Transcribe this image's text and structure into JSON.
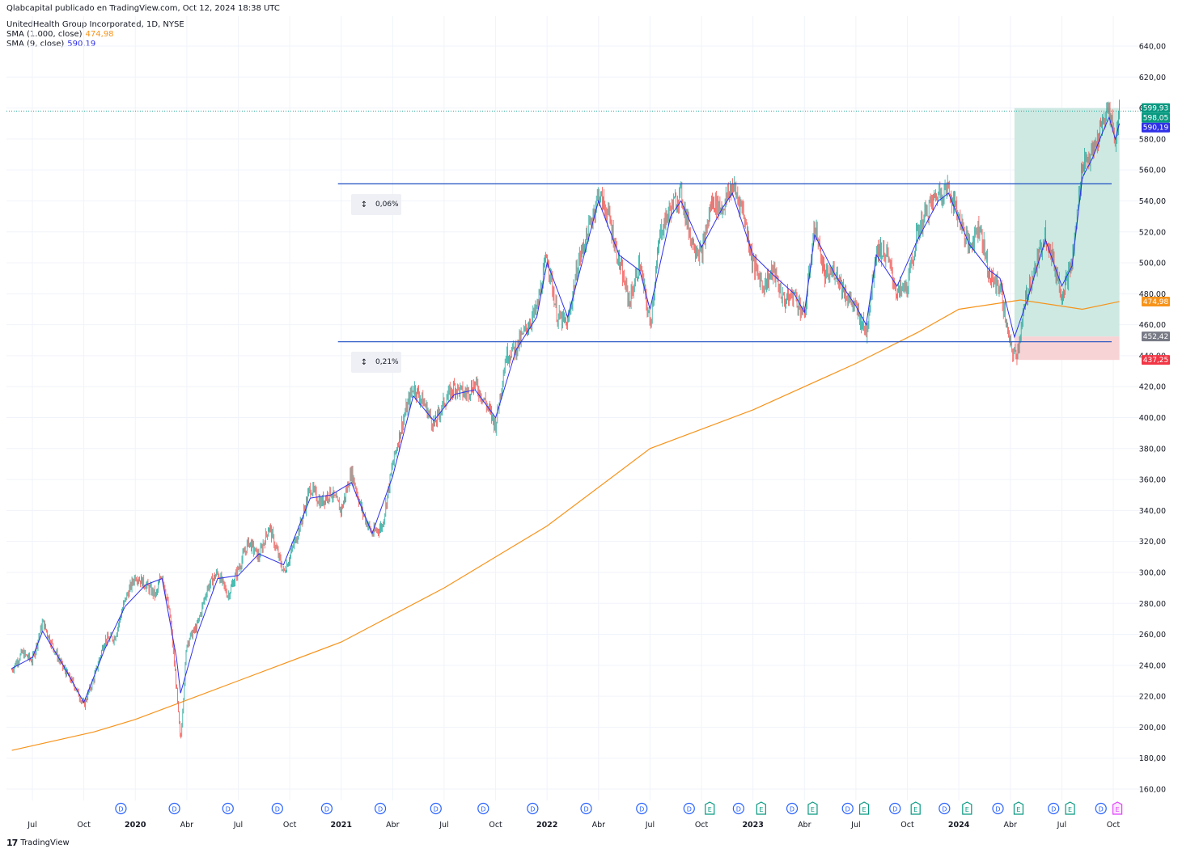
{
  "header": {
    "published": "Qlabcapital publicado en TradingView.com, Oct 12, 2024 18:38 UTC",
    "symbol": "UnitedHealth Group Incorporated, 1D, NYSE",
    "sma_long_label": "SMA (1.000, close)",
    "sma_long_value": "474,98",
    "sma_short_label": "SMA (9, close)",
    "sma_short_value": "590,19"
  },
  "measures": [
    {
      "label": "0,06%"
    },
    {
      "label": "0,21%"
    }
  ],
  "brand": {
    "name": "TradingView"
  },
  "colors": {
    "up": "#26a69a",
    "down": "#ef5350",
    "sma_long": "#f7931a",
    "sma_short": "#2f30e8",
    "channel": "#1e4fc2",
    "profit_zone": "#cde9e2",
    "loss_zone": "#f8d3d5"
  },
  "chart_data": {
    "type": "line",
    "title": "UnitedHealth Group Incorporated, 1D, NYSE",
    "y_axis": {
      "range": [
        150,
        650
      ],
      "ticks": [
        "160,00",
        "180,00",
        "200,00",
        "220,00",
        "240,00",
        "260,00",
        "280,00",
        "300,00",
        "320,00",
        "340,00",
        "360,00",
        "380,00",
        "400,00",
        "420,00",
        "440,00",
        "460,00",
        "480,00",
        "500,00",
        "520,00",
        "540,00",
        "560,00",
        "580,00",
        "600,00",
        "620,00",
        "640,00"
      ]
    },
    "x_axis": {
      "range": [
        "2019-05",
        "2024-10"
      ],
      "ticks": [
        {
          "label": "Jul",
          "t": 2019.5,
          "bold": false
        },
        {
          "label": "Oct",
          "t": 2019.75,
          "bold": false
        },
        {
          "label": "2020",
          "t": 2020.0,
          "bold": true
        },
        {
          "label": "Abr",
          "t": 2020.25,
          "bold": false
        },
        {
          "label": "Jul",
          "t": 2020.5,
          "bold": false
        },
        {
          "label": "Oct",
          "t": 2020.75,
          "bold": false
        },
        {
          "label": "2021",
          "t": 2021.0,
          "bold": true
        },
        {
          "label": "Abr",
          "t": 2021.25,
          "bold": false
        },
        {
          "label": "Jul",
          "t": 2021.5,
          "bold": false
        },
        {
          "label": "Oct",
          "t": 2021.75,
          "bold": false
        },
        {
          "label": "2022",
          "t": 2022.0,
          "bold": true
        },
        {
          "label": "Abr",
          "t": 2022.25,
          "bold": false
        },
        {
          "label": "Jul",
          "t": 2022.5,
          "bold": false
        },
        {
          "label": "Oct",
          "t": 2022.75,
          "bold": false
        },
        {
          "label": "2023",
          "t": 2023.0,
          "bold": true
        },
        {
          "label": "Abr",
          "t": 2023.25,
          "bold": false
        },
        {
          "label": "Jul",
          "t": 2023.5,
          "bold": false
        },
        {
          "label": "Oct",
          "t": 2023.75,
          "bold": false
        },
        {
          "label": "2024",
          "t": 2024.0,
          "bold": true
        },
        {
          "label": "Abr",
          "t": 2024.25,
          "bold": false
        },
        {
          "label": "Jul",
          "t": 2024.5,
          "bold": false
        },
        {
          "label": "Oct",
          "t": 2024.75,
          "bold": false
        }
      ]
    },
    "price_series": {
      "name": "",
      "points": [
        [
          2019.4,
          237
        ],
        [
          2019.45,
          248
        ],
        [
          2019.5,
          243
        ],
        [
          2019.55,
          268
        ],
        [
          2019.6,
          252
        ],
        [
          2019.65,
          238
        ],
        [
          2019.7,
          228
        ],
        [
          2019.75,
          214
        ],
        [
          2019.8,
          232
        ],
        [
          2019.85,
          256
        ],
        [
          2019.9,
          258
        ],
        [
          2019.95,
          282
        ],
        [
          2020.0,
          298
        ],
        [
          2020.05,
          292
        ],
        [
          2020.1,
          285
        ],
        [
          2020.13,
          300
        ],
        [
          2020.17,
          270
        ],
        [
          2020.2,
          225
        ],
        [
          2020.22,
          190
        ],
        [
          2020.25,
          255
        ],
        [
          2020.3,
          265
        ],
        [
          2020.35,
          290
        ],
        [
          2020.4,
          300
        ],
        [
          2020.45,
          285
        ],
        [
          2020.5,
          302
        ],
        [
          2020.55,
          320
        ],
        [
          2020.6,
          310
        ],
        [
          2020.65,
          330
        ],
        [
          2020.72,
          300
        ],
        [
          2020.75,
          310
        ],
        [
          2020.8,
          330
        ],
        [
          2020.85,
          355
        ],
        [
          2020.9,
          345
        ],
        [
          2020.95,
          352
        ],
        [
          2021.0,
          340
        ],
        [
          2021.05,
          365
        ],
        [
          2021.1,
          340
        ],
        [
          2021.15,
          325
        ],
        [
          2021.2,
          330
        ],
        [
          2021.25,
          370
        ],
        [
          2021.3,
          398
        ],
        [
          2021.35,
          420
        ],
        [
          2021.4,
          410
        ],
        [
          2021.45,
          395
        ],
        [
          2021.5,
          410
        ],
        [
          2021.55,
          420
        ],
        [
          2021.6,
          415
        ],
        [
          2021.65,
          422
        ],
        [
          2021.7,
          410
        ],
        [
          2021.75,
          395
        ],
        [
          2021.8,
          440
        ],
        [
          2021.85,
          445
        ],
        [
          2021.9,
          458
        ],
        [
          2021.95,
          470
        ],
        [
          2022.0,
          505
        ],
        [
          2022.05,
          465
        ],
        [
          2022.1,
          460
        ],
        [
          2022.15,
          500
        ],
        [
          2022.2,
          520
        ],
        [
          2022.25,
          545
        ],
        [
          2022.3,
          530
        ],
        [
          2022.35,
          500
        ],
        [
          2022.4,
          475
        ],
        [
          2022.45,
          500
        ],
        [
          2022.5,
          460
        ],
        [
          2022.55,
          520
        ],
        [
          2022.6,
          535
        ],
        [
          2022.65,
          545
        ],
        [
          2022.7,
          515
        ],
        [
          2022.75,
          505
        ],
        [
          2022.8,
          540
        ],
        [
          2022.85,
          535
        ],
        [
          2022.9,
          550
        ],
        [
          2022.95,
          535
        ],
        [
          2023.0,
          500
        ],
        [
          2023.05,
          485
        ],
        [
          2023.1,
          495
        ],
        [
          2023.15,
          475
        ],
        [
          2023.2,
          480
        ],
        [
          2023.25,
          465
        ],
        [
          2023.3,
          525
        ],
        [
          2023.35,
          490
        ],
        [
          2023.4,
          495
        ],
        [
          2023.45,
          480
        ],
        [
          2023.5,
          470
        ],
        [
          2023.55,
          455
        ],
        [
          2023.6,
          510
        ],
        [
          2023.65,
          505
        ],
        [
          2023.7,
          480
        ],
        [
          2023.75,
          485
        ],
        [
          2023.8,
          520
        ],
        [
          2023.85,
          535
        ],
        [
          2023.9,
          545
        ],
        [
          2023.95,
          548
        ],
        [
          2024.0,
          530
        ],
        [
          2024.05,
          510
        ],
        [
          2024.1,
          525
        ],
        [
          2024.15,
          490
        ],
        [
          2024.2,
          485
        ],
        [
          2024.25,
          445
        ],
        [
          2024.28,
          440
        ],
        [
          2024.33,
          480
        ],
        [
          2024.38,
          500
        ],
        [
          2024.42,
          520
        ],
        [
          2024.47,
          495
        ],
        [
          2024.5,
          480
        ],
        [
          2024.55,
          500
        ],
        [
          2024.6,
          565
        ],
        [
          2024.65,
          570
        ],
        [
          2024.7,
          590
        ],
        [
          2024.73,
          600
        ],
        [
          2024.76,
          578
        ],
        [
          2024.78,
          598
        ]
      ]
    },
    "sma_short": {
      "name": "SMA (9, close)",
      "points": [
        [
          2019.4,
          238
        ],
        [
          2019.5,
          245
        ],
        [
          2019.55,
          262
        ],
        [
          2019.65,
          240
        ],
        [
          2019.75,
          216
        ],
        [
          2019.85,
          250
        ],
        [
          2019.95,
          278
        ],
        [
          2020.05,
          292
        ],
        [
          2020.13,
          296
        ],
        [
          2020.2,
          245
        ],
        [
          2020.22,
          222
        ],
        [
          2020.3,
          260
        ],
        [
          2020.4,
          296
        ],
        [
          2020.5,
          298
        ],
        [
          2020.6,
          312
        ],
        [
          2020.72,
          305
        ],
        [
          2020.85,
          348
        ],
        [
          2020.95,
          350
        ],
        [
          2021.05,
          358
        ],
        [
          2021.15,
          325
        ],
        [
          2021.25,
          362
        ],
        [
          2021.35,
          414
        ],
        [
          2021.45,
          398
        ],
        [
          2021.55,
          415
        ],
        [
          2021.65,
          418
        ],
        [
          2021.75,
          400
        ],
        [
          2021.85,
          444
        ],
        [
          2021.95,
          465
        ],
        [
          2022.0,
          500
        ],
        [
          2022.1,
          465
        ],
        [
          2022.2,
          515
        ],
        [
          2022.25,
          540
        ],
        [
          2022.35,
          505
        ],
        [
          2022.45,
          495
        ],
        [
          2022.5,
          470
        ],
        [
          2022.6,
          530
        ],
        [
          2022.65,
          540
        ],
        [
          2022.75,
          510
        ],
        [
          2022.85,
          535
        ],
        [
          2022.9,
          545
        ],
        [
          2023.0,
          505
        ],
        [
          2023.1,
          492
        ],
        [
          2023.2,
          480
        ],
        [
          2023.25,
          468
        ],
        [
          2023.3,
          518
        ],
        [
          2023.4,
          492
        ],
        [
          2023.5,
          472
        ],
        [
          2023.55,
          460
        ],
        [
          2023.6,
          505
        ],
        [
          2023.7,
          485
        ],
        [
          2023.8,
          515
        ],
        [
          2023.9,
          540
        ],
        [
          2023.95,
          545
        ],
        [
          2024.05,
          512
        ],
        [
          2024.15,
          495
        ],
        [
          2024.2,
          490
        ],
        [
          2024.27,
          452
        ],
        [
          2024.33,
          475
        ],
        [
          2024.42,
          515
        ],
        [
          2024.5,
          485
        ],
        [
          2024.55,
          498
        ],
        [
          2024.6,
          555
        ],
        [
          2024.65,
          568
        ],
        [
          2024.7,
          585
        ],
        [
          2024.73,
          594
        ],
        [
          2024.76,
          580
        ],
        [
          2024.78,
          590
        ]
      ]
    },
    "sma_long": {
      "name": "SMA (1.000, close)",
      "points": [
        [
          2019.4,
          185
        ],
        [
          2019.8,
          197
        ],
        [
          2020.0,
          205
        ],
        [
          2020.5,
          230
        ],
        [
          2021.0,
          255
        ],
        [
          2021.5,
          290
        ],
        [
          2022.0,
          330
        ],
        [
          2022.5,
          380
        ],
        [
          2023.0,
          405
        ],
        [
          2023.5,
          435
        ],
        [
          2023.8,
          455
        ],
        [
          2024.0,
          470
        ],
        [
          2024.3,
          476
        ],
        [
          2024.6,
          470
        ],
        [
          2024.78,
          475
        ]
      ]
    },
    "channel": {
      "top": 551,
      "bottom": 449,
      "start": 2021.0,
      "end": 2024.75
    },
    "position": {
      "start": 2024.27,
      "end": 2024.78,
      "entry": 452.42,
      "target": 599.93,
      "stop": 437.25
    },
    "price_labels": [
      {
        "text": "599,93",
        "value": 599.93,
        "color": "#089981"
      },
      {
        "text": "598,05",
        "value": 598.05,
        "color": "#089981"
      },
      {
        "text": "590,19",
        "value": 590.19,
        "color": "#2f30e8"
      },
      {
        "text": "474,98",
        "value": 474.98,
        "color": "#f7931a"
      },
      {
        "text": "452,42",
        "value": 452.42,
        "color": "#787b86"
      },
      {
        "text": "437,25",
        "value": 437.25,
        "color": "#f23645"
      }
    ],
    "events": [
      {
        "t": 2019.93,
        "kind": "D"
      },
      {
        "t": 2020.19,
        "kind": "D"
      },
      {
        "t": 2020.45,
        "kind": "D"
      },
      {
        "t": 2020.69,
        "kind": "D"
      },
      {
        "t": 2020.93,
        "kind": "D"
      },
      {
        "t": 2021.19,
        "kind": "D"
      },
      {
        "t": 2021.46,
        "kind": "D"
      },
      {
        "t": 2021.69,
        "kind": "D"
      },
      {
        "t": 2021.93,
        "kind": "D"
      },
      {
        "t": 2022.19,
        "kind": "D"
      },
      {
        "t": 2022.46,
        "kind": "D"
      },
      {
        "t": 2022.69,
        "kind": "D"
      },
      {
        "t": 2022.79,
        "kind": "E"
      },
      {
        "t": 2022.93,
        "kind": "D"
      },
      {
        "t": 2023.04,
        "kind": "E"
      },
      {
        "t": 2023.19,
        "kind": "D"
      },
      {
        "t": 2023.29,
        "kind": "E"
      },
      {
        "t": 2023.46,
        "kind": "D"
      },
      {
        "t": 2023.54,
        "kind": "E"
      },
      {
        "t": 2023.69,
        "kind": "D"
      },
      {
        "t": 2023.79,
        "kind": "E"
      },
      {
        "t": 2023.93,
        "kind": "D"
      },
      {
        "t": 2024.04,
        "kind": "E"
      },
      {
        "t": 2024.19,
        "kind": "D"
      },
      {
        "t": 2024.29,
        "kind": "E"
      },
      {
        "t": 2024.46,
        "kind": "D"
      },
      {
        "t": 2024.54,
        "kind": "E"
      },
      {
        "t": 2024.69,
        "kind": "D"
      },
      {
        "t": 2024.77,
        "kind": "E-upcoming"
      }
    ]
  }
}
